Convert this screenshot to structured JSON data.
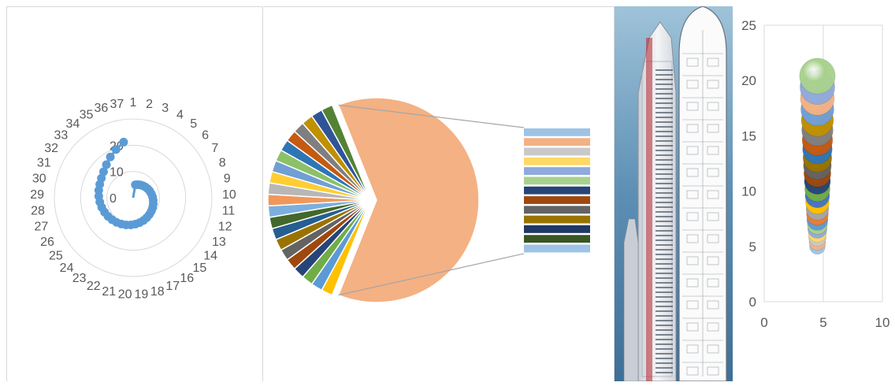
{
  "chart_data": [
    {
      "type": "radar",
      "categories": [
        "1",
        "2",
        "3",
        "4",
        "5",
        "6",
        "7",
        "8",
        "9",
        "10",
        "11",
        "12",
        "13",
        "14",
        "15",
        "16",
        "17",
        "18",
        "19",
        "20",
        "21",
        "22",
        "23",
        "24",
        "25",
        "26",
        "27",
        "28",
        "29",
        "30",
        "31",
        "32",
        "33",
        "34",
        "35",
        "36",
        "37"
      ],
      "radial_ticks": [
        "0",
        "10",
        "20"
      ],
      "rlim": [
        0,
        30
      ],
      "series": [
        {
          "color": "#5b9bd5",
          "values": [
            0,
            5,
            5.3,
            5.6,
            5.9,
            6.2,
            6.5,
            6.8,
            7.1,
            7.4,
            7.7,
            8.0,
            8.3,
            8.6,
            8.9,
            9.2,
            9.5,
            9.8,
            10.1,
            10.4,
            10.7,
            11.0,
            11.3,
            11.6,
            11.9,
            12.2,
            12.5,
            12.8,
            13.1,
            13.4,
            13.7,
            14.2,
            15.0,
            16.2,
            17.8,
            19.5,
            21.5
          ]
        }
      ]
    },
    {
      "type": "pie",
      "subtype": "bar-of-pie",
      "main_slice": {
        "value": 50,
        "color": "#f4b183"
      },
      "small_slices": [
        {
          "value": 1.45,
          "color": "#ffc000"
        },
        {
          "value": 1.45,
          "color": "#5b9bd5"
        },
        {
          "value": 1.45,
          "color": "#70ad47"
        },
        {
          "value": 1.45,
          "color": "#264478"
        },
        {
          "value": 1.45,
          "color": "#9e480e"
        },
        {
          "value": 1.45,
          "color": "#636363"
        },
        {
          "value": 1.45,
          "color": "#997300"
        },
        {
          "value": 1.45,
          "color": "#255e91"
        },
        {
          "value": 1.45,
          "color": "#43682b"
        },
        {
          "value": 1.45,
          "color": "#7cafdd"
        },
        {
          "value": 1.45,
          "color": "#f1975a"
        },
        {
          "value": 1.45,
          "color": "#b7b7b7"
        },
        {
          "value": 1.45,
          "color": "#ffcd33"
        },
        {
          "value": 1.45,
          "color": "#6f9fd5"
        },
        {
          "value": 1.45,
          "color": "#8cc168"
        },
        {
          "value": 1.45,
          "color": "#2e75b6"
        },
        {
          "value": 1.45,
          "color": "#c55a11"
        },
        {
          "value": 1.45,
          "color": "#7f7f7f"
        },
        {
          "value": 1.45,
          "color": "#bf9000"
        },
        {
          "value": 1.45,
          "color": "#2f5597"
        },
        {
          "value": 1.45,
          "color": "#548235"
        }
      ],
      "secondary_bar": [
        "#9dc3e6",
        "#f4b183",
        "#c9c9c9",
        "#ffd966",
        "#8faadc",
        "#a9d18e",
        "#264478",
        "#9e480e",
        "#636363",
        "#997300",
        "#203864",
        "#375623",
        "#9dc3e6"
      ]
    },
    {
      "type": "bubble",
      "x": [
        4.5,
        4.5,
        4.5,
        4.5,
        4.5,
        4.5,
        4.5,
        4.5,
        4.5,
        4.5,
        4.5,
        4.5,
        4.5,
        4.5,
        4.5,
        4.5,
        4.5,
        4.5,
        4.5,
        4.5,
        4.5,
        4.5,
        4.5,
        4.5
      ],
      "y": [
        5,
        5.4,
        5.8,
        6.2,
        6.6,
        7.0,
        7.4,
        7.9,
        8.4,
        9.0,
        9.6,
        10.2,
        10.9,
        11.6,
        12.3,
        13.0,
        13.8,
        14.6,
        15.5,
        16.4,
        17.4,
        18.4,
        19.4,
        20.4
      ],
      "colors": [
        "#9dc3e6",
        "#f4b183",
        "#c9c9c9",
        "#ffd966",
        "#8faadc",
        "#a9d18e",
        "#5b9bd5",
        "#ed7d31",
        "#a5a5a5",
        "#ffc000",
        "#4472c4",
        "#70ad47",
        "#264478",
        "#9e480e",
        "#636363",
        "#997300",
        "#2e75b6",
        "#c55a11",
        "#7f7f7f",
        "#bf9000",
        "#6f9fd5",
        "#f4b183",
        "#8faadc",
        "#a9d18e"
      ],
      "xlim": [
        0,
        10
      ],
      "ylim": [
        0,
        25
      ],
      "x_ticks": [
        "0",
        "5",
        "10"
      ],
      "y_ticks": [
        "0",
        "5",
        "10",
        "15",
        "20",
        "25"
      ]
    }
  ]
}
